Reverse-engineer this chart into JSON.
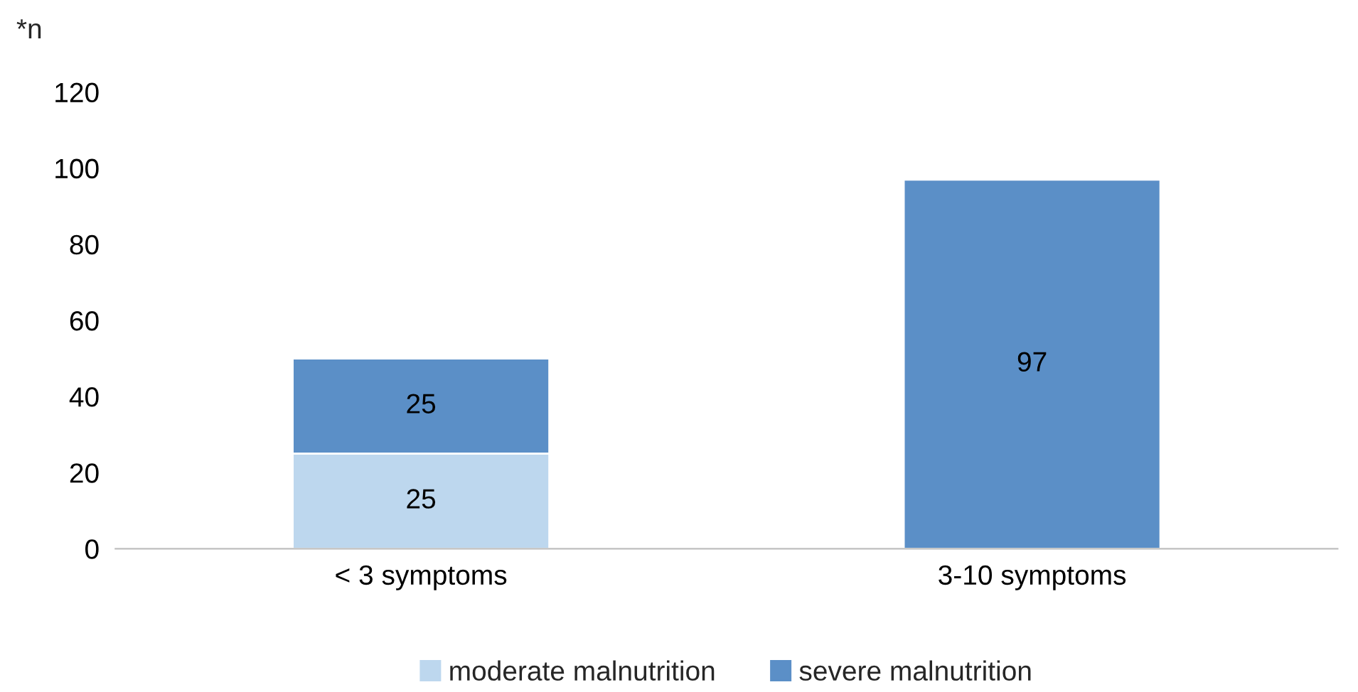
{
  "chart_data": {
    "type": "bar",
    "stacked": true,
    "ylabel": "*n",
    "categories": [
      "< 3 symptoms",
      "3-10 symptoms"
    ],
    "series": [
      {
        "name": "moderate malnutrition",
        "color": "#bdd7ee",
        "values": [
          25,
          null
        ]
      },
      {
        "name": "severe malnutrition",
        "color": "#5b8fc7",
        "values": [
          25,
          97
        ]
      }
    ],
    "ylim": [
      0,
      120
    ],
    "yticks": [
      0,
      20,
      40,
      60,
      80,
      100,
      120
    ],
    "grid": false,
    "legend": "bottom",
    "data_labels": true
  }
}
